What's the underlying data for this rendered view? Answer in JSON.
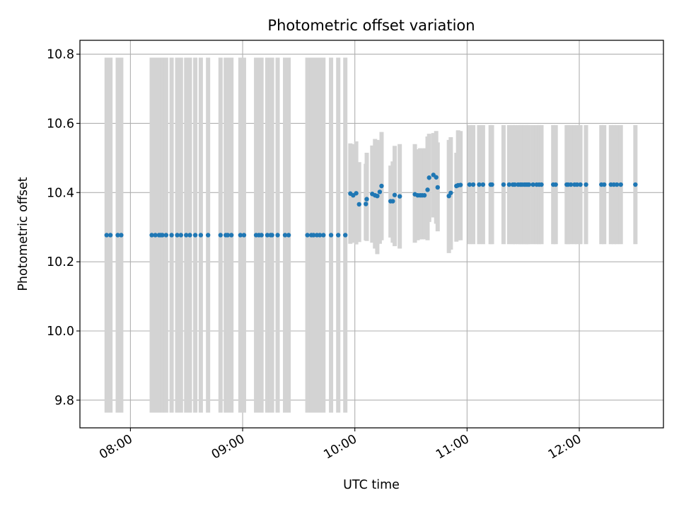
{
  "chart_data": {
    "type": "scatter",
    "title": "Photometric offset variation",
    "xlabel": "UTC time",
    "ylabel": "Photometric offset",
    "x_unit": "UTC time (hours)",
    "xlim": [
      7.55,
      12.75
    ],
    "ylim": [
      9.72,
      10.84
    ],
    "x_ticks": [
      {
        "value": 8,
        "label": "08:00"
      },
      {
        "value": 9,
        "label": "09:00"
      },
      {
        "value": 10,
        "label": "10:00"
      },
      {
        "value": 11,
        "label": "11:00"
      },
      {
        "value": 12,
        "label": "12:00"
      }
    ],
    "y_ticks": [
      {
        "value": 9.8,
        "label": "9.8"
      },
      {
        "value": 10.0,
        "label": "10.0"
      },
      {
        "value": 10.2,
        "label": "10.2"
      },
      {
        "value": 10.4,
        "label": "10.4"
      },
      {
        "value": 10.6,
        "label": "10.6"
      },
      {
        "value": 10.8,
        "label": "10.8"
      }
    ],
    "grid": true,
    "colors": {
      "marker": "#1f77b4",
      "errorbar": "#d3d3d3",
      "grid": "#b0b0b0"
    },
    "groups": [
      {
        "y": 10.277,
        "err": 0.513,
        "x": [
          7.788,
          7.822,
          7.887,
          7.918,
          8.19,
          8.222,
          8.255,
          8.27,
          8.285,
          8.318,
          8.367,
          8.417,
          8.45,
          8.497,
          8.53,
          8.578,
          8.627,
          8.692,
          8.803,
          8.85,
          8.867,
          8.9,
          8.98,
          9.012,
          9.12,
          9.145,
          9.168,
          9.22,
          9.25,
          9.262,
          9.312,
          9.378,
          9.41,
          9.577,
          9.612,
          9.632,
          9.662,
          9.688,
          9.72,
          9.788,
          9.852,
          9.915
        ]
      },
      {
        "y": 10.423,
        "err": 0.172,
        "x": [
          11.022,
          11.055,
          11.108,
          11.142,
          11.21,
          11.222,
          11.325,
          11.375,
          11.408,
          11.425,
          11.455,
          11.475,
          11.49,
          11.51,
          11.525,
          11.54,
          11.552,
          11.588,
          11.62,
          11.642,
          11.663,
          11.768,
          11.79,
          11.888,
          11.9,
          11.925,
          11.958,
          11.98,
          12.01,
          12.06,
          12.197,
          12.222,
          12.282,
          12.308,
          12.335,
          12.37,
          12.5
        ]
      }
    ],
    "points": [
      {
        "x": 9.96,
        "y": 10.397,
        "lo": 10.252,
        "hi": 10.542
      },
      {
        "x": 9.985,
        "y": 10.392,
        "lo": 10.255,
        "hi": 10.54
      },
      {
        "x": 10.012,
        "y": 10.398,
        "lo": 10.25,
        "hi": 10.548
      },
      {
        "x": 10.038,
        "y": 10.366,
        "lo": 10.257,
        "hi": 10.488
      },
      {
        "x": 10.098,
        "y": 10.367,
        "lo": 10.262,
        "hi": 10.483
      },
      {
        "x": 10.106,
        "y": 10.381,
        "lo": 10.26,
        "hi": 10.515
      },
      {
        "x": 10.155,
        "y": 10.396,
        "lo": 10.255,
        "hi": 10.536
      },
      {
        "x": 10.18,
        "y": 10.392,
        "lo": 10.238,
        "hi": 10.555
      },
      {
        "x": 10.2,
        "y": 10.39,
        "lo": 10.222,
        "hi": 10.552
      },
      {
        "x": 10.222,
        "y": 10.402,
        "lo": 10.252,
        "hi": 10.548
      },
      {
        "x": 10.238,
        "y": 10.419,
        "lo": 10.262,
        "hi": 10.575
      },
      {
        "x": 10.318,
        "y": 10.375,
        "lo": 10.27,
        "hi": 10.478
      },
      {
        "x": 10.338,
        "y": 10.375,
        "lo": 10.255,
        "hi": 10.49
      },
      {
        "x": 10.355,
        "y": 10.393,
        "lo": 10.245,
        "hi": 10.535
      },
      {
        "x": 10.4,
        "y": 10.389,
        "lo": 10.238,
        "hi": 10.54
      },
      {
        "x": 10.535,
        "y": 10.395,
        "lo": 10.255,
        "hi": 10.54
      },
      {
        "x": 10.56,
        "y": 10.392,
        "lo": 10.262,
        "hi": 10.525
      },
      {
        "x": 10.582,
        "y": 10.392,
        "lo": 10.265,
        "hi": 10.528
      },
      {
        "x": 10.6,
        "y": 10.392,
        "lo": 10.265,
        "hi": 10.525
      },
      {
        "x": 10.62,
        "y": 10.392,
        "lo": 10.265,
        "hi": 10.528
      },
      {
        "x": 10.648,
        "y": 10.408,
        "lo": 10.262,
        "hi": 10.562
      },
      {
        "x": 10.662,
        "y": 10.443,
        "lo": 10.315,
        "hi": 10.57
      },
      {
        "x": 10.7,
        "y": 10.451,
        "lo": 10.328,
        "hi": 10.572
      },
      {
        "x": 10.725,
        "y": 10.444,
        "lo": 10.31,
        "hi": 10.578
      },
      {
        "x": 10.738,
        "y": 10.415,
        "lo": 10.288,
        "hi": 10.545
      },
      {
        "x": 10.838,
        "y": 10.39,
        "lo": 10.225,
        "hi": 10.552
      },
      {
        "x": 10.855,
        "y": 10.399,
        "lo": 10.235,
        "hi": 10.56
      },
      {
        "x": 10.905,
        "y": 10.419,
        "lo": 10.258,
        "hi": 10.515
      },
      {
        "x": 10.92,
        "y": 10.421,
        "lo": 10.262,
        "hi": 10.58
      },
      {
        "x": 10.942,
        "y": 10.422,
        "lo": 10.262,
        "hi": 10.578
      }
    ]
  }
}
